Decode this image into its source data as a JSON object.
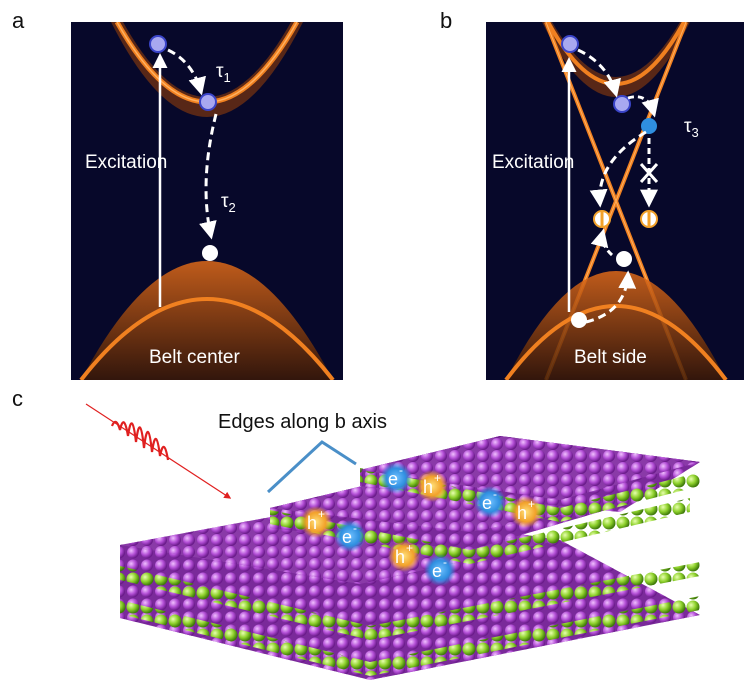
{
  "panel_a": {
    "letter": "a",
    "excitation": "Excitation",
    "tau1": "τ",
    "tau1_sub": "1",
    "tau2": "τ",
    "tau2_sub": "2",
    "caption": "Belt center"
  },
  "panel_b": {
    "letter": "b",
    "excitation": "Excitation",
    "tau3": "τ",
    "tau3_sub": "3",
    "caption": "Belt side"
  },
  "panel_c": {
    "letter": "c",
    "edge_label": "Edges along b axis",
    "carriers": [
      {
        "label": "e",
        "sup": "-",
        "kind": "electron"
      },
      {
        "label": "h",
        "sup": "+",
        "kind": "hole"
      },
      {
        "label": "e",
        "sup": "-",
        "kind": "electron"
      },
      {
        "label": "h",
        "sup": "+",
        "kind": "hole"
      },
      {
        "label": "h",
        "sup": "+",
        "kind": "hole"
      },
      {
        "label": "e",
        "sup": "-",
        "kind": "electron"
      },
      {
        "label": "h",
        "sup": "+",
        "kind": "hole"
      },
      {
        "label": "e",
        "sup": "-",
        "kind": "electron"
      }
    ]
  },
  "colors": {
    "background_dark": "#07082a",
    "band_orange": "#f07a1e",
    "electron_blue": "#2f8fe0",
    "hole_orange": "#f2a12a",
    "atom_purple": "#b34fd6",
    "atom_green": "#8ed12c",
    "pulse_red": "#e02020",
    "edge_marker": "#4a8fc8"
  }
}
